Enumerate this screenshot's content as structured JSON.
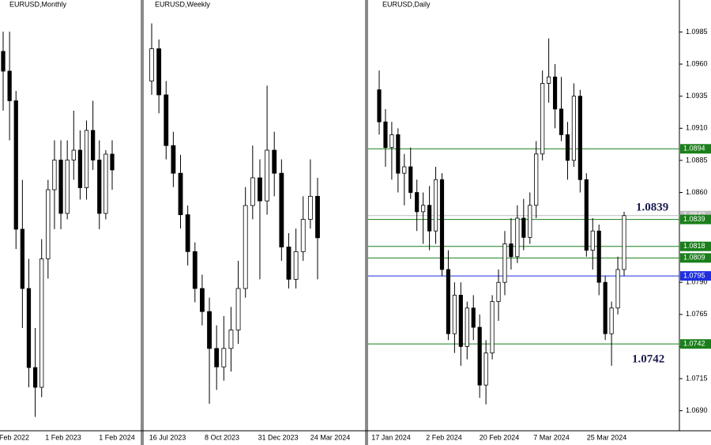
{
  "panels": [
    {
      "title": "EURUSD,Monthly",
      "ylim": [
        0.95,
        1.16
      ],
      "x_labels": [
        "Feb 2022",
        "1 Feb 2023",
        "1 Feb 2024"
      ],
      "candles": [
        [
          1.14,
          1.15,
          1.11,
          1.13
        ],
        [
          1.13,
          1.15,
          1.095,
          1.115
        ],
        [
          1.115,
          1.12,
          1.04,
          1.05
        ],
        [
          1.05,
          1.075,
          1.0,
          1.02
        ],
        [
          1.02,
          1.035,
          0.97,
          0.98
        ],
        [
          0.98,
          1.0,
          0.955,
          0.97
        ],
        [
          0.97,
          1.045,
          0.965,
          1.035
        ],
        [
          1.035,
          1.075,
          1.025,
          1.07
        ],
        [
          1.07,
          1.095,
          1.05,
          1.085
        ],
        [
          1.085,
          1.095,
          1.05,
          1.058
        ],
        [
          1.058,
          1.095,
          1.055,
          1.085
        ],
        [
          1.085,
          1.11,
          1.075,
          1.09
        ],
        [
          1.09,
          1.1,
          1.065,
          1.071
        ],
        [
          1.071,
          1.105,
          1.065,
          1.1
        ],
        [
          1.1,
          1.115,
          1.08,
          1.085
        ],
        [
          1.085,
          1.095,
          1.05,
          1.058
        ],
        [
          1.058,
          1.09,
          1.055,
          1.088
        ],
        [
          1.088,
          1.095,
          1.07,
          1.08
        ]
      ]
    },
    {
      "title": "EURUSD,Weekly",
      "ylim": [
        1.04,
        1.13
      ],
      "x_labels": [
        "16 Jul 2023",
        "8 Oct 2023",
        "31 Dec 2023",
        "24 Mar 2024"
      ],
      "candles": [
        [
          1.115,
          1.1275,
          1.112,
          1.122
        ],
        [
          1.122,
          1.124,
          1.108,
          1.112
        ],
        [
          1.112,
          1.115,
          1.098,
          1.101
        ],
        [
          1.101,
          1.104,
          1.092,
          1.095
        ],
        [
          1.095,
          1.099,
          1.083,
          1.086
        ],
        [
          1.086,
          1.088,
          1.075,
          1.078
        ],
        [
          1.078,
          1.08,
          1.067,
          1.07
        ],
        [
          1.07,
          1.073,
          1.062,
          1.065
        ],
        [
          1.065,
          1.068,
          1.045,
          1.057
        ],
        [
          1.057,
          1.062,
          1.048,
          1.053
        ],
        [
          1.053,
          1.064,
          1.05,
          1.057
        ],
        [
          1.057,
          1.066,
          1.052,
          1.061
        ],
        [
          1.061,
          1.076,
          1.058,
          1.07
        ],
        [
          1.07,
          1.092,
          1.068,
          1.088
        ],
        [
          1.088,
          1.101,
          1.085,
          1.094
        ],
        [
          1.094,
          1.098,
          1.072,
          1.089
        ],
        [
          1.089,
          1.114,
          1.086,
          1.1
        ],
        [
          1.1,
          1.104,
          1.09,
          1.095
        ],
        [
          1.095,
          1.098,
          1.076,
          1.079
        ],
        [
          1.079,
          1.082,
          1.07,
          1.072
        ],
        [
          1.072,
          1.083,
          1.07,
          1.078
        ],
        [
          1.078,
          1.09,
          1.076,
          1.085
        ],
        [
          1.085,
          1.098,
          1.083,
          1.09
        ],
        [
          1.09,
          1.094,
          1.072,
          1.081
        ]
      ]
    },
    {
      "title": "EURUSD,Daily",
      "ylim": [
        1.0675,
        1.1005
      ],
      "x_labels": [
        "17 Jan 2024",
        "2 Feb 2024",
        "20 Feb 2024",
        "7 Mar 2024",
        "25 Mar 2024"
      ],
      "yticks": [
        {
          "value": 1.0985,
          "label": "1.0985"
        },
        {
          "value": 1.096,
          "label": "1.0960"
        },
        {
          "value": 1.0935,
          "label": "1.0935"
        },
        {
          "value": 1.091,
          "label": "1.0910"
        },
        {
          "value": 1.0885,
          "label": "1.0885"
        },
        {
          "value": 1.086,
          "label": "1.0860"
        },
        {
          "value": 1.079,
          "label": "1.0790"
        },
        {
          "value": 1.0765,
          "label": "1.0765"
        },
        {
          "value": 1.074,
          "label": "1.0740"
        },
        {
          "value": 1.0715,
          "label": "1.0715"
        },
        {
          "value": 1.069,
          "label": "1.0690"
        }
      ],
      "levels": [
        {
          "value": 1.0894,
          "color": "#1a7f1a"
        },
        {
          "value": 1.0842,
          "color": "#bdbdbd"
        },
        {
          "value": 1.0839,
          "color": "#1a7f1a"
        },
        {
          "value": 1.0818,
          "color": "#1a7f1a"
        },
        {
          "value": 1.0809,
          "color": "#1a7f1a"
        },
        {
          "value": 1.0795,
          "color": "#1f2fe0"
        },
        {
          "value": 1.0742,
          "color": "#1a7f1a"
        }
      ],
      "annotations": [
        "1.0839",
        "1.0742"
      ],
      "candles": [
        [
          1.094,
          1.0955,
          1.0905,
          1.0915
        ],
        [
          1.0915,
          1.0925,
          1.088,
          1.0895
        ],
        [
          1.0895,
          1.0915,
          1.087,
          1.0905
        ],
        [
          1.0905,
          1.091,
          1.086,
          1.0875
        ],
        [
          1.0875,
          1.089,
          1.085,
          1.088
        ],
        [
          1.088,
          1.0895,
          1.0855,
          1.086
        ],
        [
          1.086,
          1.087,
          1.083,
          1.0845
        ],
        [
          1.0845,
          1.086,
          1.082,
          1.085
        ],
        [
          1.085,
          1.0865,
          1.0815,
          1.083
        ],
        [
          1.083,
          1.088,
          1.082,
          1.087
        ],
        [
          1.087,
          1.0875,
          1.0795,
          1.08
        ],
        [
          1.08,
          1.0815,
          1.0745,
          1.075
        ],
        [
          1.075,
          1.079,
          1.0735,
          1.078
        ],
        [
          1.078,
          1.079,
          1.0725,
          1.074
        ],
        [
          1.074,
          1.0775,
          1.073,
          1.077
        ],
        [
          1.077,
          1.078,
          1.0745,
          1.0755
        ],
        [
          1.0755,
          1.0765,
          1.07,
          1.071
        ],
        [
          1.071,
          1.0745,
          1.0695,
          1.0735
        ],
        [
          1.0735,
          1.078,
          1.073,
          1.0775
        ],
        [
          1.0775,
          1.08,
          1.076,
          1.079
        ],
        [
          1.079,
          1.083,
          1.078,
          1.082
        ],
        [
          1.082,
          1.084,
          1.08,
          1.081
        ],
        [
          1.081,
          1.085,
          1.0805,
          1.084
        ],
        [
          1.084,
          1.0855,
          1.0815,
          1.0825
        ],
        [
          1.0825,
          1.086,
          1.082,
          1.085
        ],
        [
          1.085,
          1.09,
          1.084,
          1.089
        ],
        [
          1.089,
          1.0955,
          1.0885,
          1.0945
        ],
        [
          1.0945,
          1.098,
          1.093,
          1.095
        ],
        [
          1.095,
          1.096,
          1.091,
          1.0925
        ],
        [
          1.0925,
          1.095,
          1.09,
          1.0905
        ],
        [
          1.0905,
          1.0915,
          1.087,
          1.0885
        ],
        [
          1.0885,
          1.0945,
          1.088,
          1.0935
        ],
        [
          1.0935,
          1.094,
          1.086,
          1.087
        ],
        [
          1.087,
          1.0875,
          1.081,
          1.0815
        ],
        [
          1.0815,
          1.084,
          1.08,
          1.083
        ],
        [
          1.083,
          1.0835,
          1.078,
          1.079
        ],
        [
          1.079,
          1.0795,
          1.0745,
          1.075
        ],
        [
          1.075,
          1.0775,
          1.0725,
          1.077
        ],
        [
          1.077,
          1.081,
          1.0765,
          1.08
        ],
        [
          1.08,
          1.0845,
          1.0795,
          1.0842
        ]
      ]
    }
  ]
}
